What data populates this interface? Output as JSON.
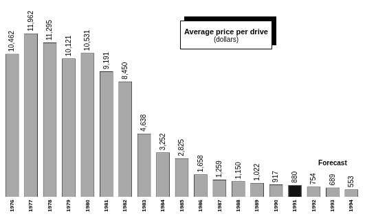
{
  "chart_data": {
    "type": "bar",
    "title": "Average price per drive",
    "subtitle": "(dollars)",
    "annotation": "Forecast",
    "categories": [
      "1976",
      "1977",
      "1978",
      "1979",
      "1980",
      "1981",
      "1982",
      "1983",
      "1984",
      "1985",
      "1986",
      "1987",
      "1988",
      "1989",
      "1990",
      "1991",
      "1992",
      "1993",
      "1994"
    ],
    "values": [
      10462,
      11962,
      11295,
      10121,
      10531,
      9191,
      8450,
      4638,
      3252,
      2825,
      1658,
      1259,
      1150,
      1022,
      917,
      880,
      754,
      689,
      553
    ],
    "value_labels": [
      "10,462",
      "11,962",
      "11,295",
      "10,121",
      "10,531",
      "9,191",
      "8,450",
      "4,638",
      "3,252",
      "2,825",
      "1,658",
      "1,259",
      "1,150",
      "1,022",
      "917",
      "880",
      "754",
      "689",
      "553"
    ],
    "colors": [
      "#a8a8a8",
      "#a8a8a8",
      "#a8a8a8",
      "#a8a8a8",
      "#a8a8a8",
      "#a8a8a8",
      "#a8a8a8",
      "#a8a8a8",
      "#a8a8a8",
      "#a8a8a8",
      "#a8a8a8",
      "#a8a8a8",
      "#a8a8a8",
      "#a8a8a8",
      "#a8a8a8",
      "#111111",
      "#a8a8a8",
      "#a8a8a8",
      "#a8a8a8"
    ],
    "data_labels": true,
    "tick_labels": "x",
    "grid": false
  }
}
